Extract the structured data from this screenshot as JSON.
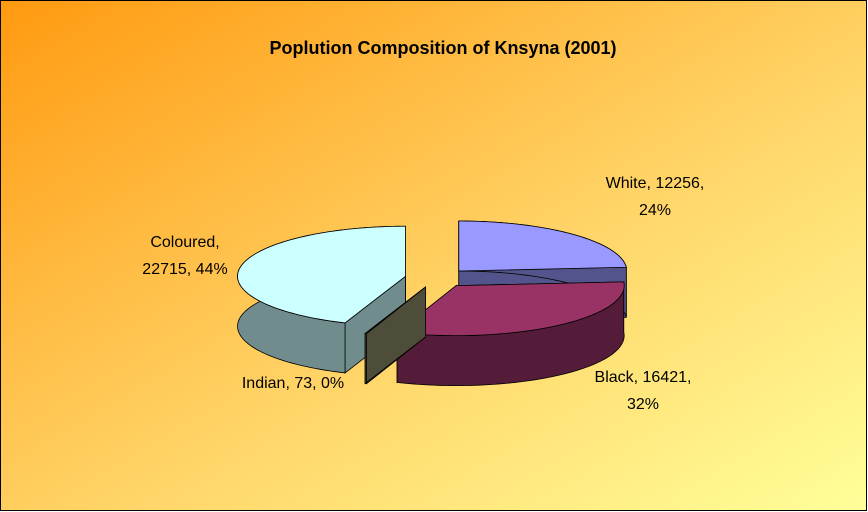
{
  "chart_data": {
    "type": "pie3d",
    "title": "Poplution Composition of Knsyna (2001)",
    "categories": [
      "White",
      "Black",
      "Indian",
      "Coloured"
    ],
    "values": [
      12256,
      16421,
      73,
      22715
    ],
    "value_labels": [
      [
        "White, 12256,",
        "24%"
      ],
      [
        "Black, 16421,",
        "32%"
      ],
      [
        "Indian, 73, 0%"
      ],
      [
        "Coloured,",
        "22715, 44%"
      ]
    ],
    "colors": [
      "#9999ff",
      "#993366",
      "#8c8c6a",
      "#ccffff"
    ]
  }
}
